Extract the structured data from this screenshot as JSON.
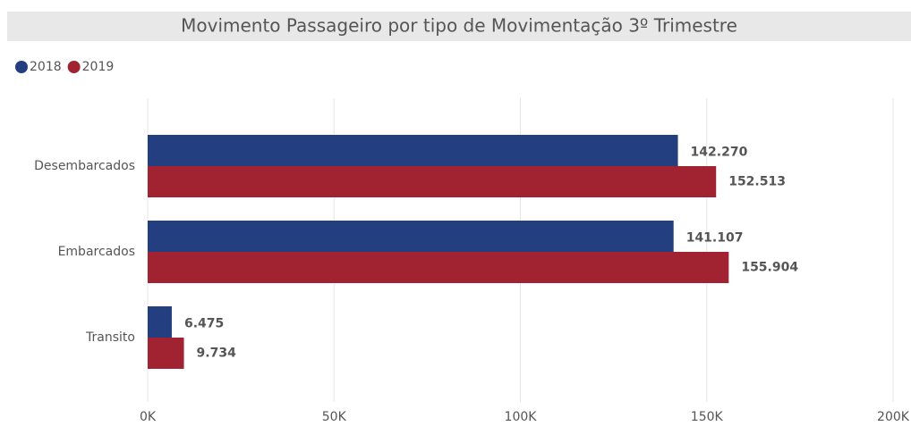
{
  "chart_data": {
    "type": "bar",
    "orientation": "horizontal",
    "title": "Movimento Passageiro por tipo de Movimentação 3º Trimestre",
    "categories": [
      "Desembarcados",
      "Embarcados",
      "Transito"
    ],
    "series": [
      {
        "name": "2018",
        "color": "#243f80",
        "values": [
          142270,
          141107,
          6475
        ],
        "value_labels": [
          "142.270",
          "141.107",
          "6.475"
        ]
      },
      {
        "name": "2019",
        "color": "#a12332",
        "values": [
          152513,
          155904,
          9734
        ],
        "value_labels": [
          "152.513",
          "155.904",
          "9.734"
        ]
      }
    ],
    "xlim": [
      0,
      200000
    ],
    "xticks": [
      {
        "value": 0,
        "label": "0K"
      },
      {
        "value": 50000,
        "label": "50K"
      },
      {
        "value": 100000,
        "label": "100K"
      },
      {
        "value": 150000,
        "label": "150K"
      },
      {
        "value": 200000,
        "label": "200K"
      }
    ],
    "grid": true,
    "legend": "top-left"
  }
}
